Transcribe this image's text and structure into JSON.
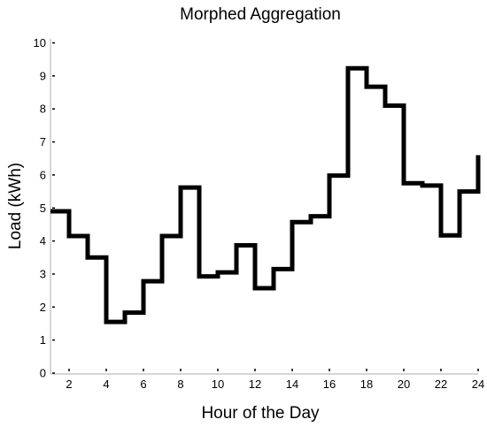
{
  "chart_data": {
    "type": "line",
    "step": "post",
    "title": "Morphed Aggregation",
    "xlabel": "Hour of the Day",
    "ylabel": "Load (kWh)",
    "xlim": [
      1,
      24
    ],
    "ylim": [
      0,
      10
    ],
    "xticks": [
      2,
      4,
      6,
      8,
      10,
      12,
      14,
      16,
      18,
      20,
      22,
      24
    ],
    "yticks": [
      0,
      1,
      2,
      3,
      4,
      5,
      6,
      7,
      8,
      9,
      10
    ],
    "series": [
      {
        "x": [
          1,
          2,
          3,
          4,
          5,
          6,
          7,
          8,
          9,
          10,
          11,
          12,
          13,
          14,
          15,
          16,
          17,
          18,
          19,
          20,
          21,
          22,
          23,
          24
        ],
        "values": [
          4.9,
          4.15,
          3.5,
          1.55,
          1.83,
          2.78,
          4.15,
          5.62,
          2.93,
          3.05,
          3.87,
          2.57,
          3.15,
          4.57,
          4.75,
          5.98,
          9.23,
          8.67,
          8.1,
          5.75,
          5.68,
          4.17,
          5.5,
          6.6
        ]
      }
    ],
    "grid": false,
    "legend": "none"
  }
}
